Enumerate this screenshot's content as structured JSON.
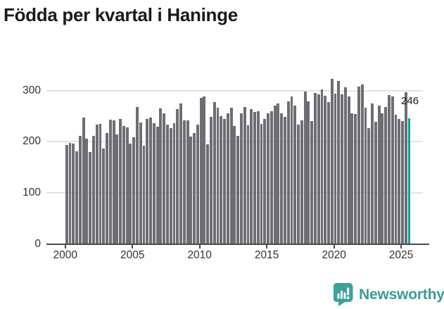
{
  "title": "Födda per kvartal i Haninge",
  "chart_data": {
    "type": "bar",
    "title": "Födda per kvartal i Haninge",
    "x_unit": "quarter",
    "x_start": "2000 Q1",
    "x_end": "2025 Q3",
    "values": [
      194,
      198,
      196,
      181,
      211,
      247,
      206,
      180,
      211,
      233,
      235,
      187,
      217,
      243,
      241,
      214,
      245,
      231,
      228,
      197,
      209,
      268,
      238,
      192,
      244,
      247,
      236,
      229,
      265,
      256,
      233,
      226,
      236,
      264,
      275,
      241,
      242,
      210,
      217,
      234,
      285,
      288,
      195,
      248,
      277,
      266,
      250,
      245,
      255,
      266,
      230,
      212,
      255,
      268,
      232,
      264,
      258,
      260,
      235,
      244,
      255,
      260,
      270,
      274,
      256,
      249,
      279,
      288,
      270,
      234,
      241,
      298,
      279,
      240,
      295,
      293,
      302,
      290,
      278,
      323,
      294,
      319,
      292,
      306,
      289,
      255,
      254,
      307,
      311,
      266,
      227,
      275,
      239,
      271,
      255,
      268,
      291,
      288,
      252,
      245,
      240,
      296,
      246
    ],
    "highlight": {
      "index": 102,
      "value": 246,
      "label": "246"
    },
    "yticks": [
      0,
      100,
      200,
      300
    ],
    "xticks": [
      2000,
      2005,
      2010,
      2015,
      2020,
      2025
    ],
    "ylim": [
      0,
      340
    ],
    "grid": "horizontal",
    "legend": "none",
    "colors": {
      "bar": "#6d6d73",
      "highlight": "#00a69d",
      "grid": "#e3e3e3",
      "axis": "#4a4a4d",
      "text": "#333333",
      "title": "#1a1a1a",
      "annotation": "#191919"
    }
  },
  "branding": {
    "name": "Newsworthy",
    "icon": "newsworthy-speech-bubble-bar-chart-icon",
    "icon_color": "#3ba19e",
    "text_color": "#3b9b98"
  }
}
